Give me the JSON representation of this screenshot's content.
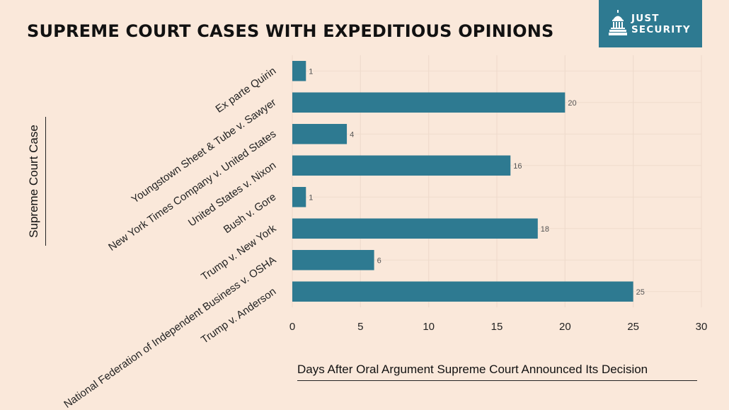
{
  "title": "SUPREME COURT CASES WITH EXPEDITIOUS OPINIONS",
  "logo": {
    "line1": "JUST",
    "line2": "SECURITY"
  },
  "colors": {
    "background": "#fae8da",
    "bar": "#2e7a91",
    "logo_bg": "#2e7a91",
    "grid": "#efdccd"
  },
  "chart_data": {
    "type": "bar",
    "orientation": "horizontal",
    "categories": [
      "Ex parte Quirin",
      "Youngstown Sheet & Tube v. Sawyer",
      "New York Times Company v. United States",
      "United States v. Nixon",
      "Bush v. Gore",
      "Trump v. New York",
      "National Federation of Independent Business v. OSHA",
      "Trump v. Anderson"
    ],
    "values": [
      1,
      20,
      4,
      16,
      1,
      18,
      6,
      25
    ],
    "xlabel": "Days After Oral Argument Supreme Court Announced Its Decision",
    "ylabel": "Supreme Court Case",
    "xlim": [
      0,
      30
    ],
    "xticks": [
      0,
      5,
      10,
      15,
      20,
      25,
      30
    ],
    "grid": true,
    "data_labels": true
  }
}
